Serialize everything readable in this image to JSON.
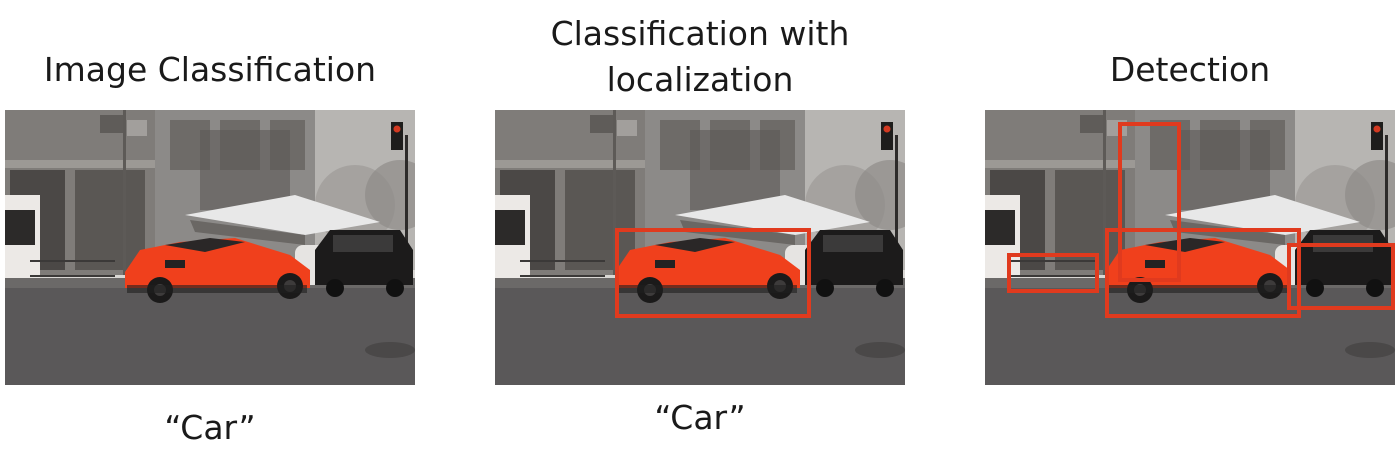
{
  "panels": [
    {
      "title_line1": "Image Classification",
      "title_line2": "",
      "caption": "“Car”"
    },
    {
      "title_line1": "Classification with",
      "title_line2": "localization",
      "caption": "“Car”"
    },
    {
      "title_line1": "Detection",
      "title_line2": "",
      "caption": ""
    }
  ],
  "colors": {
    "box": "#e03a1e",
    "car": "#f0401c",
    "ground": "#5a5859",
    "building": "#8c8a88"
  }
}
